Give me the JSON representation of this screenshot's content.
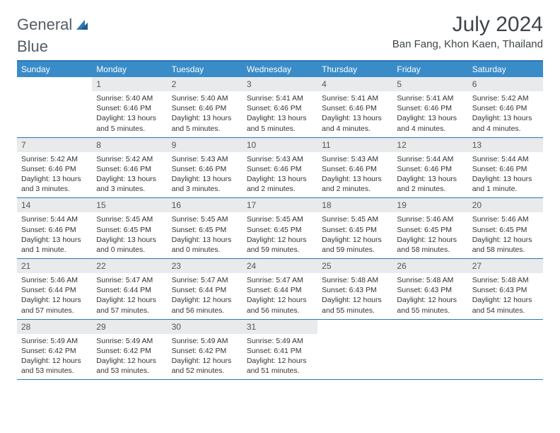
{
  "logo": {
    "text1": "General",
    "text2": "Blue"
  },
  "title": "July 2024",
  "location": "Ban Fang, Khon Kaen, Thailand",
  "colors": {
    "header_bar": "#3a8cc9",
    "border": "#2b77b8",
    "daynum_bg": "#e8eaec",
    "text": "#333333",
    "logo_gray": "#555c63",
    "logo_blue": "#2b77b8"
  },
  "dow": [
    "Sunday",
    "Monday",
    "Tuesday",
    "Wednesday",
    "Thursday",
    "Friday",
    "Saturday"
  ],
  "weeks": [
    [
      {
        "n": "",
        "sr": "",
        "ss": "",
        "dl": ""
      },
      {
        "n": "1",
        "sr": "5:40 AM",
        "ss": "6:46 PM",
        "dl": "13 hours and 5 minutes."
      },
      {
        "n": "2",
        "sr": "5:40 AM",
        "ss": "6:46 PM",
        "dl": "13 hours and 5 minutes."
      },
      {
        "n": "3",
        "sr": "5:41 AM",
        "ss": "6:46 PM",
        "dl": "13 hours and 5 minutes."
      },
      {
        "n": "4",
        "sr": "5:41 AM",
        "ss": "6:46 PM",
        "dl": "13 hours and 4 minutes."
      },
      {
        "n": "5",
        "sr": "5:41 AM",
        "ss": "6:46 PM",
        "dl": "13 hours and 4 minutes."
      },
      {
        "n": "6",
        "sr": "5:42 AM",
        "ss": "6:46 PM",
        "dl": "13 hours and 4 minutes."
      }
    ],
    [
      {
        "n": "7",
        "sr": "5:42 AM",
        "ss": "6:46 PM",
        "dl": "13 hours and 3 minutes."
      },
      {
        "n": "8",
        "sr": "5:42 AM",
        "ss": "6:46 PM",
        "dl": "13 hours and 3 minutes."
      },
      {
        "n": "9",
        "sr": "5:43 AM",
        "ss": "6:46 PM",
        "dl": "13 hours and 3 minutes."
      },
      {
        "n": "10",
        "sr": "5:43 AM",
        "ss": "6:46 PM",
        "dl": "13 hours and 2 minutes."
      },
      {
        "n": "11",
        "sr": "5:43 AM",
        "ss": "6:46 PM",
        "dl": "13 hours and 2 minutes."
      },
      {
        "n": "12",
        "sr": "5:44 AM",
        "ss": "6:46 PM",
        "dl": "13 hours and 2 minutes."
      },
      {
        "n": "13",
        "sr": "5:44 AM",
        "ss": "6:46 PM",
        "dl": "13 hours and 1 minute."
      }
    ],
    [
      {
        "n": "14",
        "sr": "5:44 AM",
        "ss": "6:46 PM",
        "dl": "13 hours and 1 minute."
      },
      {
        "n": "15",
        "sr": "5:45 AM",
        "ss": "6:45 PM",
        "dl": "13 hours and 0 minutes."
      },
      {
        "n": "16",
        "sr": "5:45 AM",
        "ss": "6:45 PM",
        "dl": "13 hours and 0 minutes."
      },
      {
        "n": "17",
        "sr": "5:45 AM",
        "ss": "6:45 PM",
        "dl": "12 hours and 59 minutes."
      },
      {
        "n": "18",
        "sr": "5:45 AM",
        "ss": "6:45 PM",
        "dl": "12 hours and 59 minutes."
      },
      {
        "n": "19",
        "sr": "5:46 AM",
        "ss": "6:45 PM",
        "dl": "12 hours and 58 minutes."
      },
      {
        "n": "20",
        "sr": "5:46 AM",
        "ss": "6:45 PM",
        "dl": "12 hours and 58 minutes."
      }
    ],
    [
      {
        "n": "21",
        "sr": "5:46 AM",
        "ss": "6:44 PM",
        "dl": "12 hours and 57 minutes."
      },
      {
        "n": "22",
        "sr": "5:47 AM",
        "ss": "6:44 PM",
        "dl": "12 hours and 57 minutes."
      },
      {
        "n": "23",
        "sr": "5:47 AM",
        "ss": "6:44 PM",
        "dl": "12 hours and 56 minutes."
      },
      {
        "n": "24",
        "sr": "5:47 AM",
        "ss": "6:44 PM",
        "dl": "12 hours and 56 minutes."
      },
      {
        "n": "25",
        "sr": "5:48 AM",
        "ss": "6:43 PM",
        "dl": "12 hours and 55 minutes."
      },
      {
        "n": "26",
        "sr": "5:48 AM",
        "ss": "6:43 PM",
        "dl": "12 hours and 55 minutes."
      },
      {
        "n": "27",
        "sr": "5:48 AM",
        "ss": "6:43 PM",
        "dl": "12 hours and 54 minutes."
      }
    ],
    [
      {
        "n": "28",
        "sr": "5:49 AM",
        "ss": "6:42 PM",
        "dl": "12 hours and 53 minutes."
      },
      {
        "n": "29",
        "sr": "5:49 AM",
        "ss": "6:42 PM",
        "dl": "12 hours and 53 minutes."
      },
      {
        "n": "30",
        "sr": "5:49 AM",
        "ss": "6:42 PM",
        "dl": "12 hours and 52 minutes."
      },
      {
        "n": "31",
        "sr": "5:49 AM",
        "ss": "6:41 PM",
        "dl": "12 hours and 51 minutes."
      },
      {
        "n": "",
        "sr": "",
        "ss": "",
        "dl": ""
      },
      {
        "n": "",
        "sr": "",
        "ss": "",
        "dl": ""
      },
      {
        "n": "",
        "sr": "",
        "ss": "",
        "dl": ""
      }
    ]
  ],
  "labels": {
    "sunrise": "Sunrise:",
    "sunset": "Sunset:",
    "daylight": "Daylight:"
  }
}
